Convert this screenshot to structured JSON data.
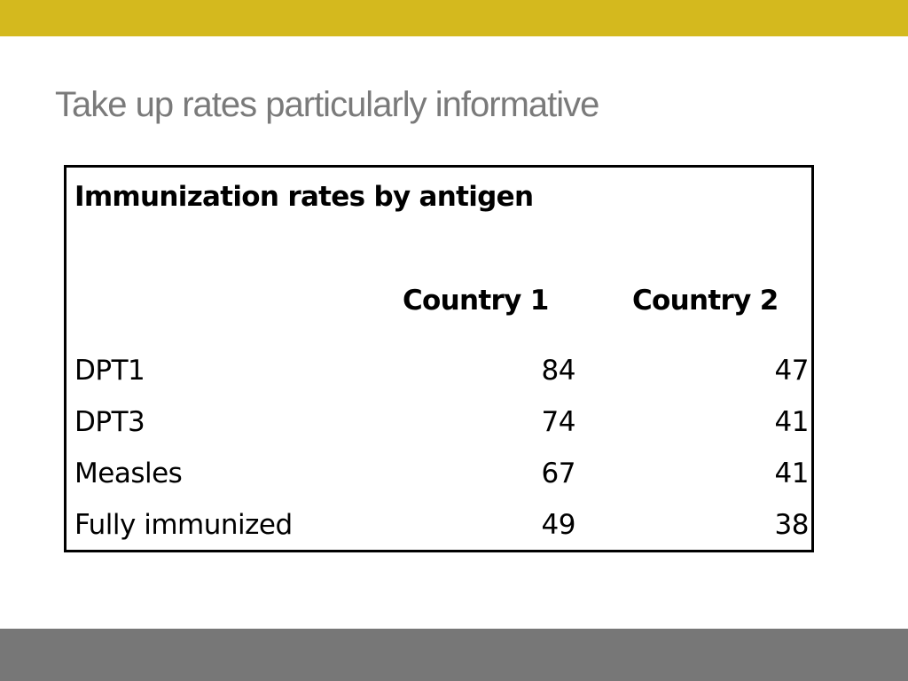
{
  "slide": {
    "title": "Take up rates particularly informative"
  },
  "table": {
    "title": "Immunization rates by antigen",
    "columns": [
      "Country 1",
      "Country 2"
    ],
    "rows": [
      {
        "label": "DPT1",
        "country1": "84",
        "country2": "47"
      },
      {
        "label": "DPT3",
        "country1": "74",
        "country2": "41"
      },
      {
        "label": "Measles",
        "country1": "67",
        "country2": "41"
      },
      {
        "label": "Fully immunized",
        "country1": "49",
        "country2": "38"
      }
    ]
  },
  "colors": {
    "top_bar": "#d4b91e",
    "bottom_bar": "#777777",
    "title_text": "#7a7a7a"
  }
}
